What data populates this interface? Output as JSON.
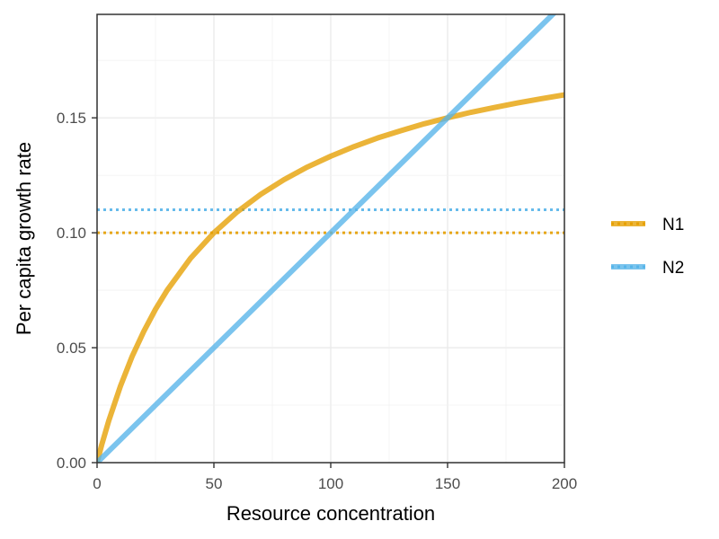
{
  "chart_data": {
    "type": "line",
    "title": "",
    "xlabel": "Resource concentration",
    "ylabel": "Per capita growth rate",
    "xlim": [
      0,
      200
    ],
    "ylim": [
      0,
      0.195
    ],
    "x_ticks": [
      0,
      50,
      100,
      150,
      200
    ],
    "x_tick_labels": [
      "0",
      "50",
      "100",
      "150",
      "200"
    ],
    "y_ticks": [
      0,
      0.05,
      0.1,
      0.15
    ],
    "y_tick_labels": [
      "0.00",
      "0.05",
      "0.10",
      "0.15"
    ],
    "grid": true,
    "legend_position": "right",
    "series": [
      {
        "name": "N1",
        "color": "#E69F00",
        "style": "solid",
        "x": [
          0,
          2,
          5,
          10,
          15,
          20,
          25,
          30,
          40,
          50,
          60,
          70,
          80,
          90,
          100,
          110,
          120,
          130,
          140,
          150,
          160,
          170,
          180,
          190,
          200
        ],
        "y": [
          0,
          0.0078,
          0.0182,
          0.0333,
          0.0462,
          0.0571,
          0.0667,
          0.075,
          0.0889,
          0.1,
          0.1091,
          0.1167,
          0.1231,
          0.1286,
          0.1333,
          0.1375,
          0.1412,
          0.1444,
          0.1474,
          0.15,
          0.1524,
          0.1545,
          0.1565,
          0.1583,
          0.16
        ]
      },
      {
        "name": "N2",
        "color": "#56B4E9",
        "style": "solid",
        "x": [
          0,
          200
        ],
        "y": [
          0,
          0.2
        ]
      }
    ],
    "reference_lines": [
      {
        "series": "N1",
        "y": 0.1,
        "color": "#E69F00",
        "style": "dotted"
      },
      {
        "series": "N2",
        "y": 0.11,
        "color": "#56B4E9",
        "style": "dotted"
      }
    ]
  }
}
